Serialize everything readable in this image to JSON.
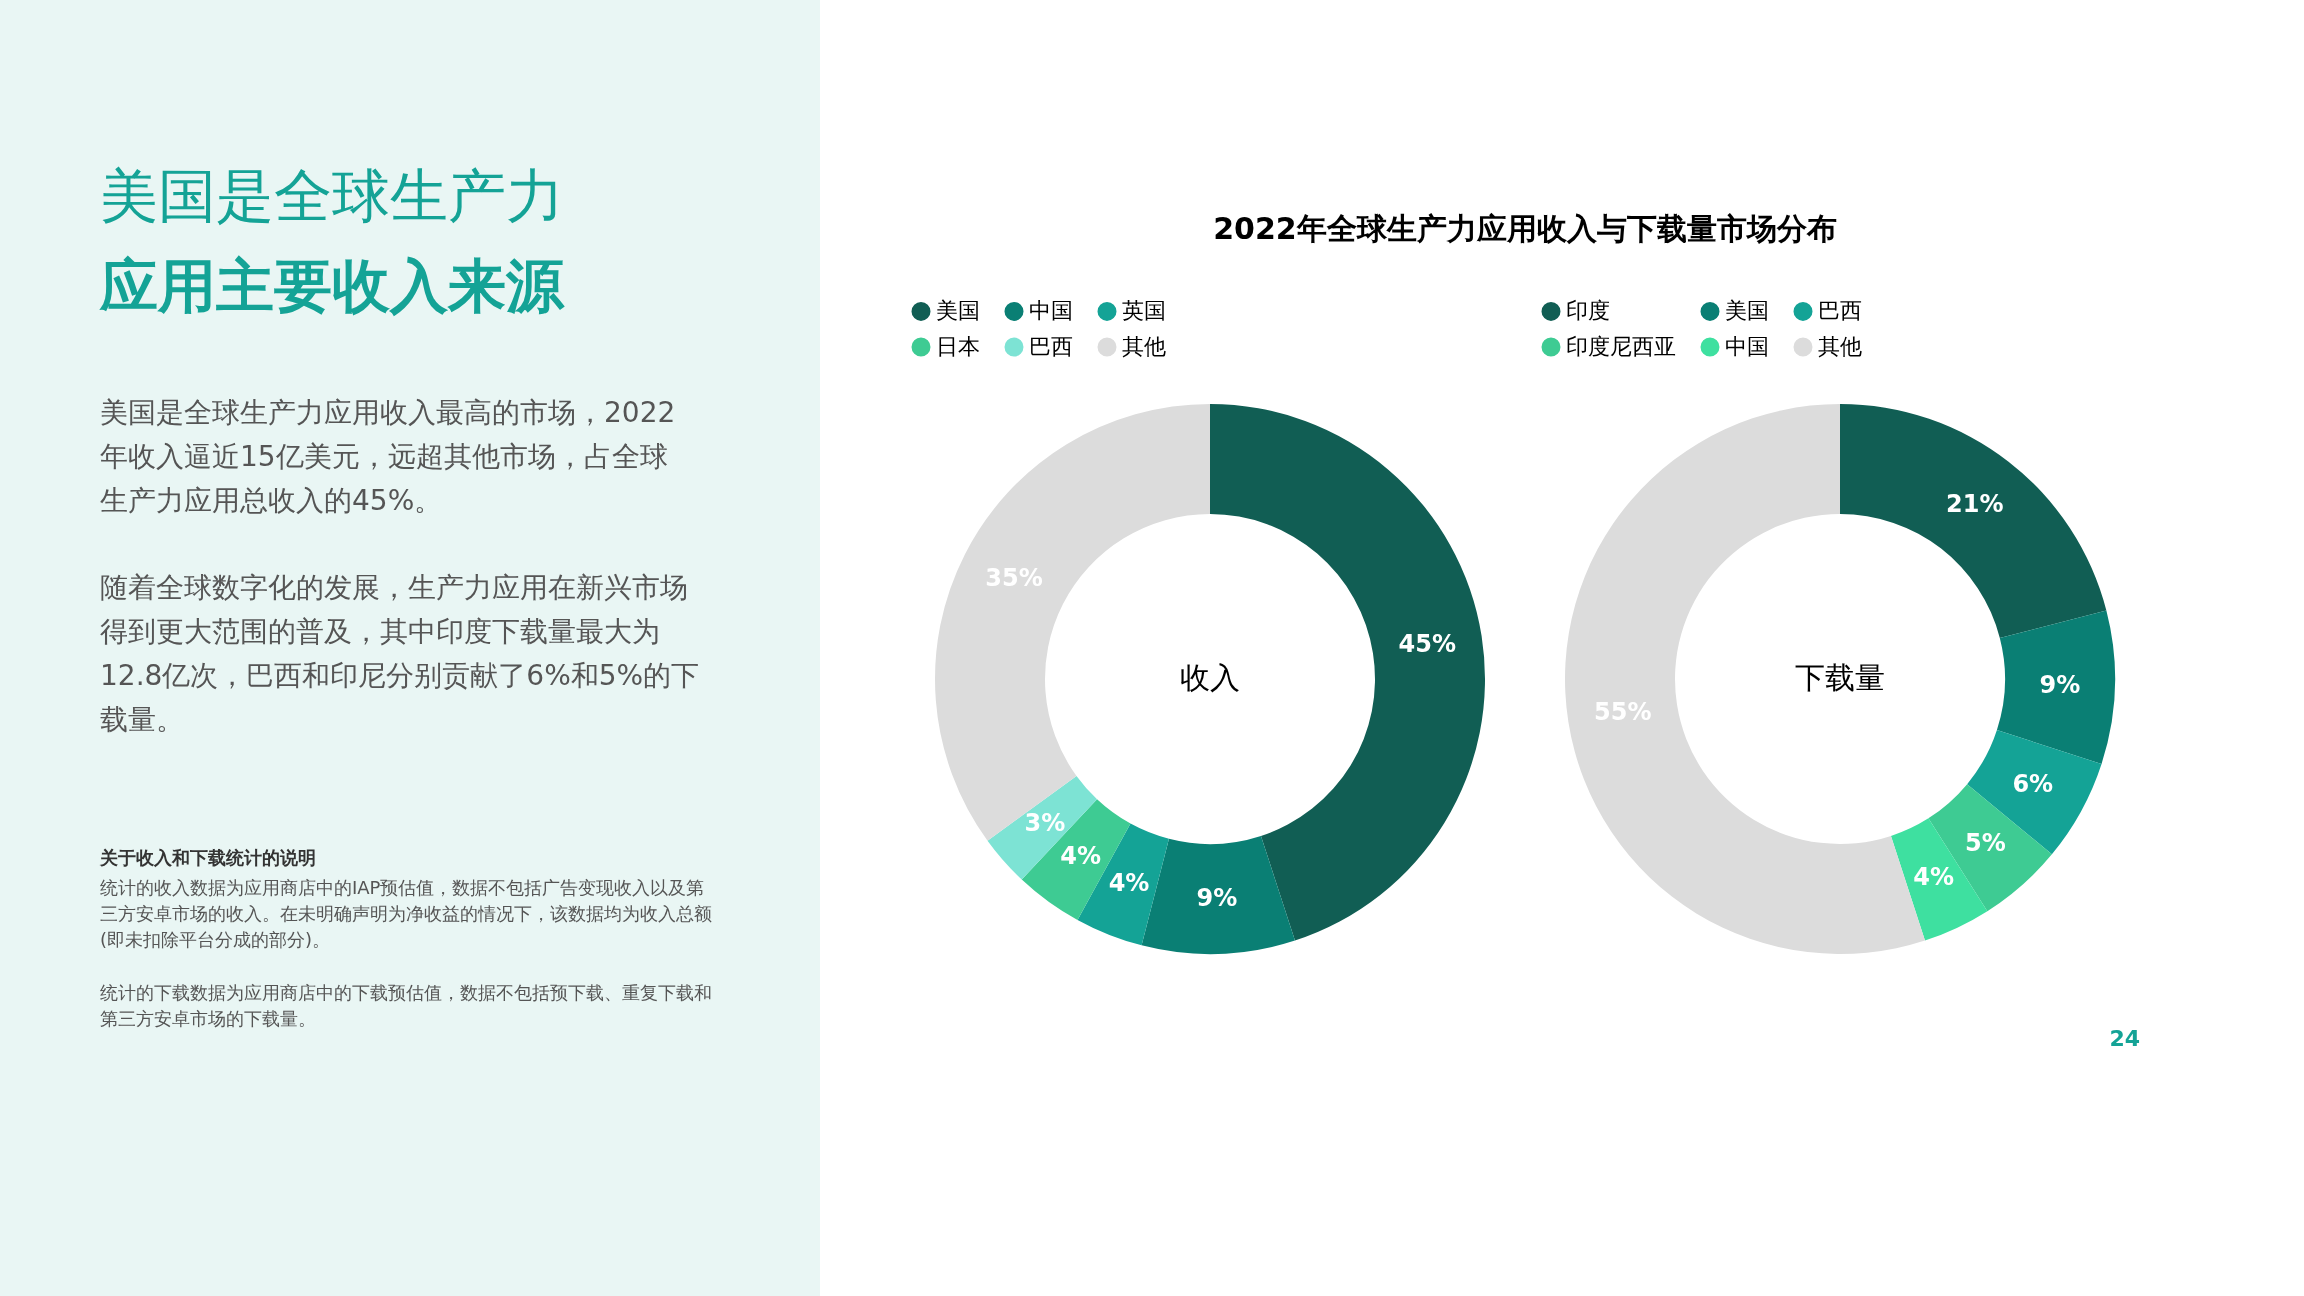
{
  "chart_data": [
    {
      "type": "donut",
      "title": "2022年全球生产力应用收入与下载量市场分布",
      "subtitle": "收入",
      "categories": [
        "美国",
        "中国",
        "英国",
        "日本",
        "巴西",
        "其他"
      ],
      "values": [
        45,
        9,
        4,
        4,
        3,
        35
      ],
      "colors": [
        "#115e54",
        "#0a7f74",
        "#14a396",
        "#3ecb93",
        "#7de3d4",
        "#dcdcdc"
      ],
      "value_labels": [
        "45%",
        "9%",
        "4%",
        "4%",
        "3%",
        "35%"
      ],
      "legend": "top",
      "annotations": [
        "美国是全球生产力",
        "应用主要收入来源",
        "美国是全球生产力应用收入最高的市场，2022年收入逼近15亿美元，远超其他市场，占全球生产力应用总收入的45%。",
        "随着全球数字化的发展，生产力应用在新兴市场得到更大范围的普及，其中印度下载量最大为12.8亿次，巴西和印尼分别贡献了6%和5%的下载量。",
        "关于收入和下载统计的说明",
        "统计的收入数据为应用商店中的IAP预估值，数据不包括广告变现收入以及第三方安卓市场的收入。在未明确声明为净收益的情况下，该数据均为收入总额(即未扣除平台分成的部分)。",
        "统计的下载数据为应用商店中的下载预估值，数据不包括预下载、重复下载和第三方安卓市场的下载量。",
        "24"
      ]
    },
    {
      "type": "donut",
      "subtitle": "下载量",
      "categories": [
        "印度",
        "美国",
        "巴西",
        "印度尼西亚",
        "中国",
        "其他"
      ],
      "values": [
        21,
        9,
        6,
        5,
        4,
        55
      ],
      "colors": [
        "#115e54",
        "#0a7f74",
        "#14a396",
        "#3ecb93",
        "#3ee0a0",
        "#dcdcdc"
      ],
      "value_labels": [
        "21%",
        "9%",
        "6%",
        "5%",
        "4%",
        "55%"
      ],
      "legend": "top"
    }
  ]
}
